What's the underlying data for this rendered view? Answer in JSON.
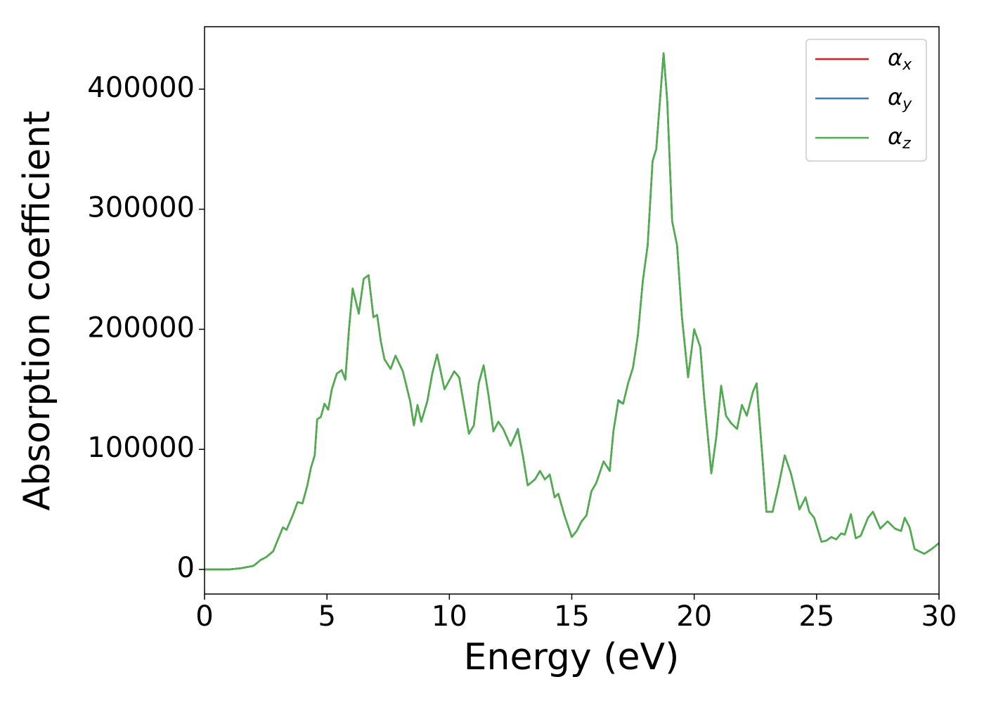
{
  "chart_data": {
    "type": "line",
    "xlabel": "Energy (eV)",
    "ylabel": "Absorption coefficient",
    "x": [
      0,
      1,
      1.5,
      2,
      2.3,
      2.5,
      2.8,
      3.0,
      3.2,
      3.35,
      3.6,
      3.8,
      4.0,
      4.2,
      4.35,
      4.5,
      4.6,
      4.75,
      4.9,
      5.05,
      5.2,
      5.4,
      5.6,
      5.75,
      5.9,
      6.05,
      6.3,
      6.5,
      6.7,
      6.9,
      7.05,
      7.2,
      7.35,
      7.6,
      7.8,
      8.1,
      8.4,
      8.55,
      8.7,
      8.85,
      9.1,
      9.3,
      9.5,
      9.8,
      10.2,
      10.4,
      10.8,
      11.0,
      11.2,
      11.4,
      11.6,
      11.8,
      12.0,
      12.2,
      12.5,
      12.8,
      13.0,
      13.2,
      13.5,
      13.7,
      13.9,
      14.1,
      14.3,
      14.45,
      14.7,
      15.0,
      15.2,
      15.4,
      15.6,
      15.8,
      16.0,
      16.3,
      16.55,
      16.7,
      16.9,
      17.1,
      17.3,
      17.5,
      17.7,
      17.9,
      18.1,
      18.3,
      18.45,
      18.6,
      18.75,
      18.9,
      19.1,
      19.3,
      19.5,
      19.75,
      20.0,
      20.25,
      20.4,
      20.7,
      20.9,
      21.1,
      21.3,
      21.5,
      21.75,
      21.95,
      22.15,
      22.4,
      22.55,
      22.8,
      22.95,
      23.2,
      23.45,
      23.7,
      23.95,
      24.3,
      24.55,
      24.7,
      24.9,
      25.2,
      25.4,
      25.6,
      25.8,
      26.0,
      26.15,
      26.4,
      26.6,
      26.8,
      27.1,
      27.3,
      27.6,
      27.9,
      28.2,
      28.45,
      28.6,
      28.8,
      29.0,
      29.2,
      29.4,
      29.7,
      30.0
    ],
    "series": [
      {
        "name": "αx",
        "color": "#e41a1c",
        "values": [
          0,
          0,
          1000,
          3000,
          8000,
          10000,
          15000,
          25000,
          35000,
          33000,
          45000,
          56000,
          55000,
          70000,
          85000,
          95000,
          125000,
          127000,
          138000,
          133000,
          150000,
          163000,
          166000,
          158000,
          200000,
          234000,
          213000,
          242000,
          245000,
          210000,
          212000,
          190000,
          175000,
          167000,
          178000,
          165000,
          140000,
          120000,
          137000,
          123000,
          140000,
          163000,
          179000,
          150000,
          165000,
          160000,
          113000,
          120000,
          155000,
          170000,
          145000,
          115000,
          123000,
          117000,
          103000,
          116000,
          95000,
          70000,
          75000,
          82000,
          75000,
          79000,
          60000,
          63000,
          45000,
          27000,
          32000,
          40000,
          45000,
          65000,
          72000,
          90000,
          82000,
          115000,
          140000,
          138000,
          155000,
          168000,
          195000,
          240000,
          270000,
          340000,
          350000,
          390000,
          430000,
          390000,
          290000,
          270000,
          210000,
          160000,
          200000,
          185000,
          145000,
          80000,
          110000,
          153000,
          128000,
          122000,
          117000,
          137000,
          128000,
          148000,
          155000,
          90000,
          48000,
          48000,
          70000,
          95000,
          80000,
          50000,
          60000,
          48000,
          43000,
          23000,
          24000,
          27000,
          25000,
          30000,
          29000,
          46000,
          26000,
          28000,
          43000,
          48000,
          34000,
          40000,
          34000,
          32000,
          43000,
          35000,
          17000,
          15000,
          13000,
          17000,
          22000
        ]
      },
      {
        "name": "αy",
        "color": "#377eb8",
        "values": [
          0,
          0,
          1000,
          3000,
          8000,
          10000,
          15000,
          25000,
          35000,
          33000,
          45000,
          56000,
          55000,
          70000,
          85000,
          95000,
          125000,
          127000,
          138000,
          133000,
          150000,
          163000,
          166000,
          158000,
          200000,
          234000,
          213000,
          242000,
          245000,
          210000,
          212000,
          190000,
          175000,
          167000,
          178000,
          165000,
          140000,
          120000,
          137000,
          123000,
          140000,
          163000,
          179000,
          150000,
          165000,
          160000,
          113000,
          120000,
          155000,
          170000,
          145000,
          115000,
          123000,
          117000,
          103000,
          117000,
          95000,
          70000,
          75000,
          82000,
          75000,
          79000,
          60000,
          63000,
          45000,
          27000,
          32000,
          40000,
          45000,
          65000,
          72000,
          90000,
          82000,
          115000,
          141000,
          138000,
          155000,
          168000,
          195000,
          240000,
          270000,
          340000,
          350000,
          390000,
          430000,
          390000,
          290000,
          270000,
          210000,
          160000,
          200000,
          185000,
          145000,
          80000,
          110000,
          153000,
          128000,
          122000,
          117000,
          137000,
          128000,
          148000,
          155000,
          90000,
          48000,
          48000,
          70000,
          95000,
          80000,
          50000,
          60000,
          48000,
          43000,
          23000,
          24000,
          27000,
          25000,
          30000,
          29000,
          46000,
          26000,
          28000,
          43000,
          48000,
          34000,
          40000,
          34000,
          32000,
          43000,
          35000,
          17000,
          15000,
          13000,
          17000,
          22000
        ]
      },
      {
        "name": "αz",
        "color": "#4daf4a",
        "values": [
          0,
          0,
          1000,
          3000,
          8000,
          10000,
          15000,
          25000,
          35000,
          33000,
          45000,
          56000,
          55000,
          70000,
          85000,
          95000,
          125000,
          127000,
          138000,
          133000,
          150000,
          163000,
          166000,
          158000,
          200000,
          234000,
          213000,
          242000,
          245000,
          210000,
          212000,
          190000,
          175000,
          167000,
          178000,
          165000,
          140000,
          120000,
          137000,
          123000,
          140000,
          163000,
          179000,
          150000,
          165000,
          160000,
          113000,
          120000,
          155000,
          170000,
          145000,
          115000,
          123000,
          117000,
          103000,
          116000,
          95000,
          70000,
          75000,
          82000,
          75000,
          79000,
          60000,
          63000,
          45000,
          27000,
          32000,
          40000,
          45000,
          65000,
          72000,
          90000,
          82000,
          115000,
          140000,
          138000,
          155000,
          168000,
          195000,
          240000,
          270000,
          340000,
          350000,
          390000,
          430000,
          390000,
          290000,
          270000,
          210000,
          160000,
          200000,
          185000,
          145000,
          80000,
          110000,
          153000,
          128000,
          122000,
          117000,
          137000,
          128000,
          148000,
          155000,
          90000,
          48000,
          48000,
          70000,
          95000,
          80000,
          50000,
          60000,
          48000,
          43000,
          23000,
          24000,
          27000,
          25000,
          30000,
          29000,
          46000,
          26000,
          28000,
          43000,
          48000,
          34000,
          40000,
          34000,
          32000,
          43000,
          35000,
          17000,
          15000,
          13000,
          17000,
          22000
        ]
      }
    ],
    "xlim": [
      0,
      30
    ],
    "xticks": [
      0,
      5,
      10,
      15,
      20,
      25,
      30
    ],
    "ylim": [
      -20500,
      452000
    ],
    "yticks": [
      0,
      100000,
      200000,
      300000,
      400000
    ],
    "grid": false,
    "legend": "upper right"
  }
}
